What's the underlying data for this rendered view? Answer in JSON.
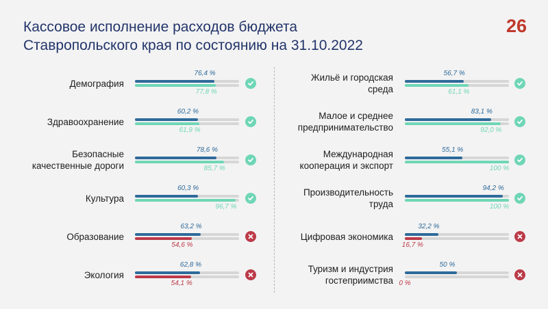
{
  "title": {
    "line1": "Кассовое исполнение расходов бюджета",
    "line2": "Ставропольского края по состоянию на 31.10.2022"
  },
  "logo": {
    "text": "26",
    "icon": "region-26-logo"
  },
  "colors": {
    "title": "#22346a",
    "actual_bar": "#2e6a9a",
    "planned_ok": "#6fd6b6",
    "planned_bad": "#bc3a48",
    "track": "#d6d6d6",
    "ok_status": "#6fd6b6",
    "bad_status": "#bc3a48"
  },
  "chart_data": {
    "type": "bar",
    "title": "Кассовое исполнение расходов бюджета Ставропольского края по состоянию на 31.10.2022",
    "series": [
      {
        "name": "top bar (blue)",
        "values": [
          76.4,
          60.2,
          78.6,
          60.3,
          63.2,
          62.8,
          56.7,
          83.1,
          55.1,
          94.2,
          32.2,
          50
        ]
      },
      {
        "name": "bottom bar (green/red)",
        "values": [
          77.8,
          61.9,
          85.7,
          96.7,
          54.6,
          54.1,
          61.1,
          92.0,
          100,
          100,
          16.7,
          0
        ]
      }
    ],
    "categories": [
      "Демография",
      "Здравоохранение",
      "Безопасные качественные дороги",
      "Культура",
      "Образование",
      "Экология",
      "Жильё и городская среда",
      "Малое и среднее предпринимательство",
      "Международная кооперация и экспорт",
      "Производительность труда",
      "Цифровая экономика",
      "Туризм и индустрия гостеприимства"
    ],
    "xlim": [
      0,
      100
    ],
    "items": [
      {
        "label": "Демография",
        "v1": 76.4,
        "v1_text": "76,4 %",
        "v2": 77.8,
        "v2_text": "77,8 %",
        "status": "ok",
        "status_icon": "check-icon"
      },
      {
        "label": "Здравоохранение",
        "v1": 60.2,
        "v1_text": "60,2 %",
        "v2": 61.9,
        "v2_text": "61,9 %",
        "status": "ok",
        "status_icon": "check-icon"
      },
      {
        "label": "Безопасные\nкачественные дороги",
        "v1": 78.6,
        "v1_text": "78,6 %",
        "v2": 85.7,
        "v2_text": "85,7 %",
        "status": "ok",
        "status_icon": "check-icon"
      },
      {
        "label": "Культура",
        "v1": 60.3,
        "v1_text": "60,3 %",
        "v2": 96.7,
        "v2_text": "96,7 %",
        "status": "ok",
        "status_icon": "check-icon"
      },
      {
        "label": "Образование",
        "v1": 63.2,
        "v1_text": "63,2 %",
        "v2": 54.6,
        "v2_text": "54,6 %",
        "status": "bad",
        "status_icon": "cross-icon"
      },
      {
        "label": "Экология",
        "v1": 62.8,
        "v1_text": "62,8 %",
        "v2": 54.1,
        "v2_text": "54,1 %",
        "status": "bad",
        "status_icon": "cross-icon"
      },
      {
        "label": "Жильё и городская\nсреда",
        "v1": 56.7,
        "v1_text": "56,7 %",
        "v2": 61.1,
        "v2_text": "61,1 %",
        "status": "ok",
        "status_icon": "check-icon"
      },
      {
        "label": "Малое и среднее\nпредпринимательство",
        "v1": 83.1,
        "v1_text": "83,1 %",
        "v2": 92.0,
        "v2_text": "92,0 %",
        "status": "ok",
        "status_icon": "check-icon"
      },
      {
        "label": "Международная\nкооперация и экспорт",
        "v1": 55.1,
        "v1_text": "55,1 %",
        "v2": 100,
        "v2_text": "100 %",
        "status": "ok",
        "status_icon": "check-icon"
      },
      {
        "label": "Производительность\nтруда",
        "v1": 94.2,
        "v1_text": "94,2 %",
        "v2": 100,
        "v2_text": "100 %",
        "status": "ok",
        "status_icon": "check-icon"
      },
      {
        "label": "Цифровая экономика",
        "v1": 32.2,
        "v1_text": "32,2 %",
        "v2": 16.7,
        "v2_text": "16,7 %",
        "status": "bad",
        "status_icon": "cross-icon"
      },
      {
        "label": "Туризм и индустрия\nгостеприимства",
        "v1": 50,
        "v1_text": "50 %",
        "v2": 0,
        "v2_text": "0 %",
        "status": "bad",
        "status_icon": "cross-icon"
      }
    ]
  }
}
